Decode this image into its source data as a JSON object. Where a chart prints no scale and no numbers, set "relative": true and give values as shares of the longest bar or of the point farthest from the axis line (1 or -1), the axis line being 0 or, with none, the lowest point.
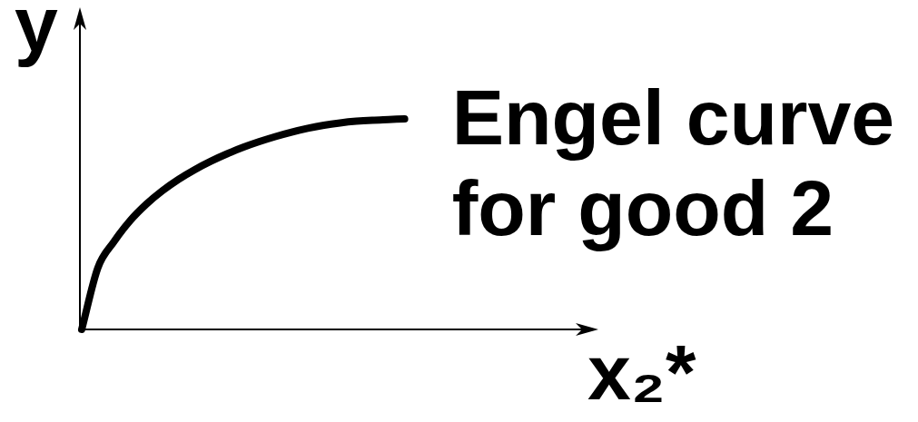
{
  "chart_data": {
    "type": "line",
    "xlabel": "x₂*",
    "ylabel": "y",
    "relative": true,
    "marker": "none",
    "categories": [
      null,
      null,
      null,
      null,
      null,
      null,
      null,
      null,
      null,
      null,
      null,
      null,
      null,
      null,
      null,
      null,
      null,
      null,
      null,
      null,
      null,
      null,
      null,
      null,
      null,
      null,
      null,
      null,
      null,
      null,
      null,
      null,
      null
    ],
    "series": [
      {
        "name": "Engel curve for good 2",
        "color": "#000000",
        "values": [
          0,
          0.293,
          0.417,
          0.517,
          0.595,
          0.659,
          0.713,
          0.759,
          0.799,
          0.834,
          0.865,
          0.892,
          0.916,
          0.937,
          0.955,
          0.97,
          0.981,
          0.989,
          0.994,
          0.997,
          1.0,
          null,
          null,
          null,
          null,
          null,
          null,
          null,
          null,
          null,
          null,
          null,
          null
        ]
      }
    ]
  }
}
